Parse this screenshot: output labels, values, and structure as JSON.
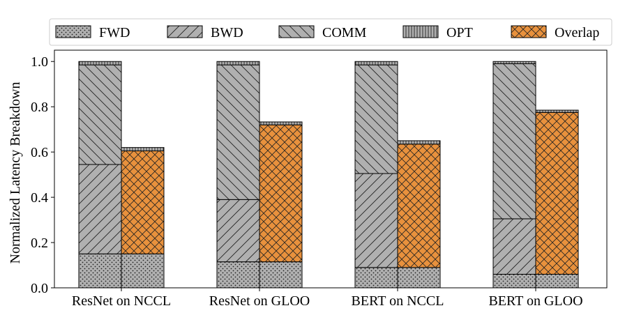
{
  "chart_data": {
    "type": "bar",
    "stacked": true,
    "xlabel": "",
    "ylabel": "Normalized Latency Breakdown",
    "ylim": [
      0.0,
      1.05
    ],
    "yticks": [
      "0.0",
      "0.2",
      "0.4",
      "0.6",
      "0.8",
      "1.0"
    ],
    "grid": false,
    "legend_position": "top",
    "categories": [
      "ResNet on NCCL",
      "ResNet on GLOO",
      "BERT on NCCL",
      "BERT on GLOO"
    ],
    "legend": [
      {
        "name": "FWD",
        "pattern": "dots",
        "color": "#b0b0b0"
      },
      {
        "name": "BWD",
        "pattern": "diag-up",
        "color": "#b0b0b0"
      },
      {
        "name": "COMM",
        "pattern": "diag-down",
        "color": "#b0b0b0"
      },
      {
        "name": "OPT",
        "pattern": "vertical",
        "color": "#b0b0b0"
      },
      {
        "name": "Overlap",
        "pattern": "cross",
        "color": "#e8913d"
      }
    ],
    "bars": [
      {
        "category": "ResNet on NCCL",
        "position": "left",
        "segments": [
          {
            "series": "FWD",
            "value": 0.15
          },
          {
            "series": "BWD",
            "value": 0.395
          },
          {
            "series": "COMM",
            "value": 0.44
          },
          {
            "series": "OPT",
            "value": 0.015
          }
        ]
      },
      {
        "category": "ResNet on NCCL",
        "position": "right",
        "segments": [
          {
            "series": "FWD",
            "value": 0.15
          },
          {
            "series": "Overlap",
            "value": 0.455
          },
          {
            "series": "OPT",
            "value": 0.015
          }
        ]
      },
      {
        "category": "ResNet on GLOO",
        "position": "left",
        "segments": [
          {
            "series": "FWD",
            "value": 0.115
          },
          {
            "series": "BWD",
            "value": 0.275
          },
          {
            "series": "COMM",
            "value": 0.595
          },
          {
            "series": "OPT",
            "value": 0.015
          }
        ]
      },
      {
        "category": "ResNet on GLOO",
        "position": "right",
        "segments": [
          {
            "series": "FWD",
            "value": 0.115
          },
          {
            "series": "Overlap",
            "value": 0.605
          },
          {
            "series": "OPT",
            "value": 0.013
          }
        ]
      },
      {
        "category": "BERT on NCCL",
        "position": "left",
        "segments": [
          {
            "series": "FWD",
            "value": 0.09
          },
          {
            "series": "BWD",
            "value": 0.415
          },
          {
            "series": "COMM",
            "value": 0.48
          },
          {
            "series": "OPT",
            "value": 0.015
          }
        ]
      },
      {
        "category": "BERT on NCCL",
        "position": "right",
        "segments": [
          {
            "series": "FWD",
            "value": 0.09
          },
          {
            "series": "Overlap",
            "value": 0.545
          },
          {
            "series": "OPT",
            "value": 0.015
          }
        ]
      },
      {
        "category": "BERT on GLOO",
        "position": "left",
        "segments": [
          {
            "series": "FWD",
            "value": 0.06
          },
          {
            "series": "BWD",
            "value": 0.245
          },
          {
            "series": "COMM",
            "value": 0.685
          },
          {
            "series": "OPT",
            "value": 0.01
          }
        ]
      },
      {
        "category": "BERT on GLOO",
        "position": "right",
        "segments": [
          {
            "series": "FWD",
            "value": 0.06
          },
          {
            "series": "Overlap",
            "value": 0.715
          },
          {
            "series": "OPT",
            "value": 0.01
          }
        ]
      }
    ]
  }
}
